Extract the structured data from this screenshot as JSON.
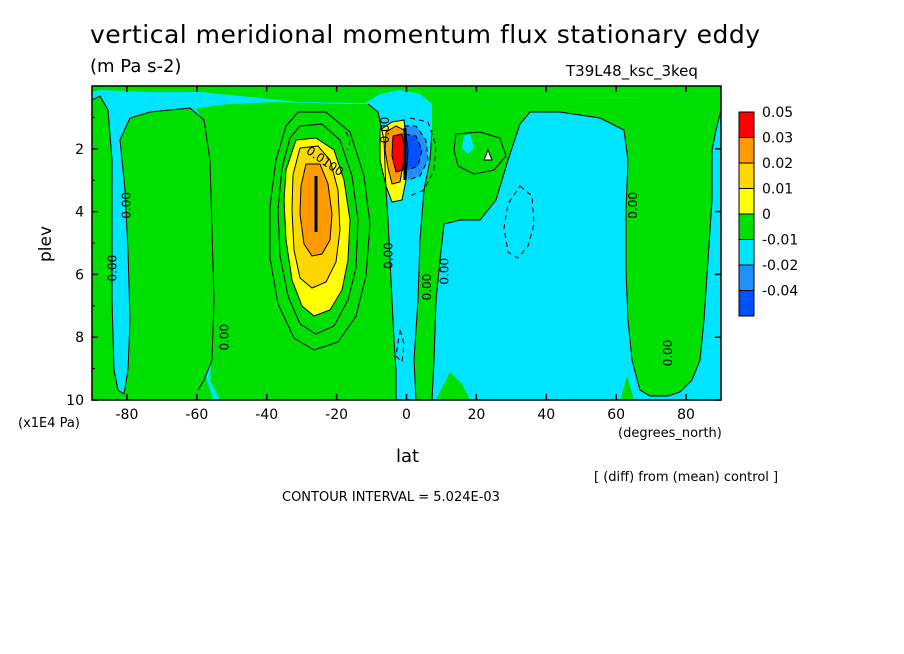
{
  "title": "vertical meridional momentum flux stationary eddy",
  "units": "(m Pa s-2)",
  "run_label": "T39L48_ksc_3keq",
  "footnote": "[ (diff) from (mean) control ]",
  "contour_interval": "CONTOUR INTERVAL = 5.024E-03",
  "chart_data": {
    "type": "contour",
    "xlabel": "lat",
    "xunit": "(degrees_north)",
    "ylabel": "plev",
    "yunit": "(x1E4 Pa)",
    "xlim": [
      -90,
      90
    ],
    "ylim": [
      10,
      0
    ],
    "x_ticks": [
      -80,
      -60,
      -40,
      -20,
      0,
      20,
      40,
      60,
      80
    ],
    "y_ticks": [
      2,
      4,
      6,
      8,
      10
    ],
    "colorbar": {
      "levels": [
        "0.05",
        "0.03",
        "0.02",
        "0.01",
        "0",
        "-0.01",
        "-0.02",
        "-0.04"
      ],
      "colors": [
        "#ff0000",
        "#ff9a00",
        "#ffd700",
        "#ffff00",
        "#00e000",
        "#00e5ff",
        "#1e90ff",
        "#0050ff"
      ]
    },
    "contour_labels": [
      {
        "text": "0.0100",
        "lat": -24,
        "plev": 2.5
      },
      {
        "text": "0.00",
        "lat": -79,
        "plev": 3.8
      },
      {
        "text": "0.00",
        "lat": -83,
        "plev": 5.8
      },
      {
        "text": "0.00",
        "lat": -51,
        "plev": 8.0
      },
      {
        "text": "0.00",
        "lat": -4,
        "plev": 5.4
      },
      {
        "text": "0.00",
        "lat": 7,
        "plev": 6.4
      },
      {
        "text": "0.00",
        "lat": 12,
        "plev": 5.9
      },
      {
        "text": "0.00",
        "lat": 66,
        "plev": 3.8
      },
      {
        "text": "0.00",
        "lat": 76,
        "plev": 8.5
      },
      {
        "text": "0.00",
        "lat": -5,
        "plev": 1.4
      }
    ],
    "regions": [
      {
        "level": "0",
        "color": "#00e000",
        "desc": "positive background"
      },
      {
        "level": "-0.01",
        "color": "#00e5ff",
        "desc": "negative background"
      },
      {
        "level": "0.01",
        "color": "#ffff00",
        "center_lat": -25,
        "center_plev": 4.0
      },
      {
        "level": "0.02",
        "color": "#ffd700",
        "center_lat": -25,
        "center_plev": 3.8
      },
      {
        "level": "0.03",
        "color": "#ff9a00",
        "center_lat": -25,
        "center_plev": 3.6
      },
      {
        "level": "0.05",
        "color": "#ff0000",
        "center_lat": -1,
        "center_plev": 2.4
      },
      {
        "level": "-0.04",
        "color": "#0050ff",
        "center_lat": 2,
        "center_plev": 2.4
      }
    ]
  }
}
